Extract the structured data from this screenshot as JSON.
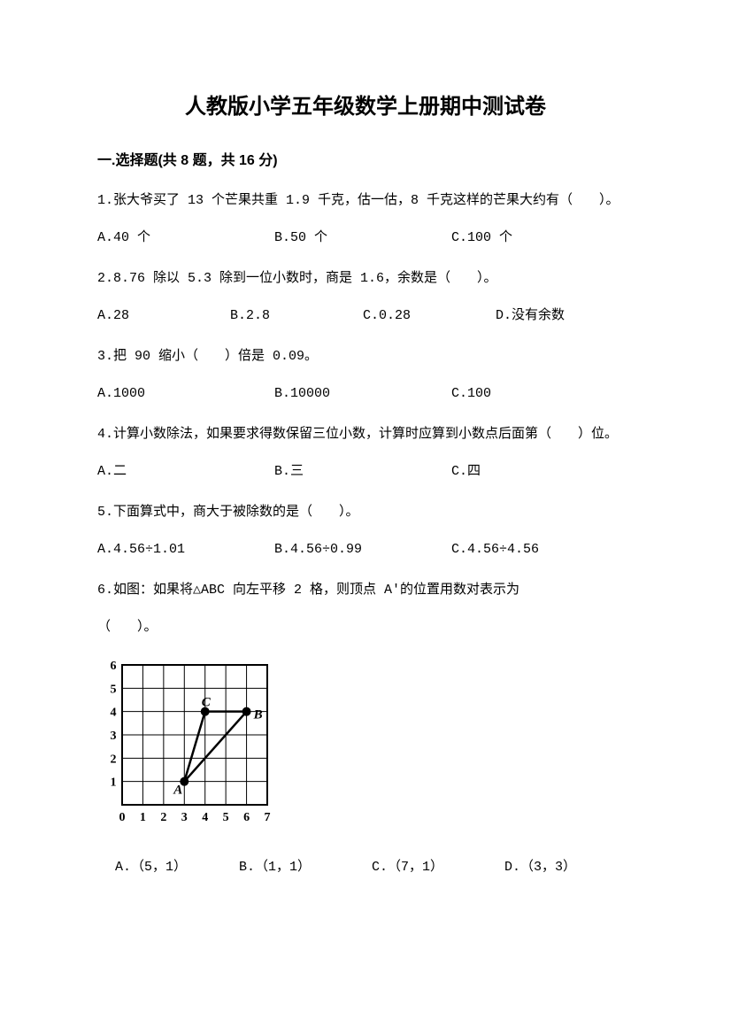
{
  "title": "人教版小学五年级数学上册期中测试卷",
  "section1": {
    "header": "一.选择题(共 8 题，共 16 分)",
    "q1": {
      "text": "1.张大爷买了 13 个芒果共重 1.9 千克，估一估，8 千克这样的芒果大约有（　　）。",
      "a": "A.40 个",
      "b": "B.50 个",
      "c": "C.100 个"
    },
    "q2": {
      "text": "2.8.76 除以 5.3 除到一位小数时，商是 1.6，余数是（　　）。",
      "a": "A.28",
      "b": "B.2.8",
      "c": "C.0.28",
      "d": "D.没有余数"
    },
    "q3": {
      "text": "3.把 90 缩小（　　）倍是 0.09。",
      "a": "A.1000",
      "b": "B.10000",
      "c": "C.100"
    },
    "q4": {
      "text": "4.计算小数除法，如果要求得数保留三位小数，计算时应算到小数点后面第（　　）位。",
      "a": "A.二",
      "b": "B.三",
      "c": "C.四"
    },
    "q5": {
      "text": "5.下面算式中，商大于被除数的是（　　）。",
      "a": "A.4.56÷1.01",
      "b": "B.4.56÷0.99",
      "c": "C.4.56÷4.56"
    },
    "q6": {
      "text1": "6.如图：如果将△ABC 向左平移 2 格，则顶点 A′的位置用数对表示为",
      "text2": "（　　）。",
      "a": "A.（5，1）",
      "b": "B.（1，1）",
      "c": "C.（7，1）",
      "d": "D.（3，3）"
    }
  },
  "chart": {
    "type": "grid-diagram",
    "x_range": [
      0,
      7
    ],
    "y_range": [
      0,
      6
    ],
    "x_labels": [
      "0",
      "1",
      "2",
      "3",
      "4",
      "5",
      "6",
      "7"
    ],
    "y_labels": [
      "1",
      "2",
      "3",
      "4",
      "5",
      "6"
    ],
    "grid_color": "#000000",
    "background_color": "#ffffff",
    "line_width": 1,
    "border_width": 2,
    "axis_font_size": 14,
    "axis_font_weight": "bold",
    "points": {
      "A": {
        "x": 3,
        "y": 1,
        "marker": "circle",
        "marker_size": 5,
        "color": "#000000"
      },
      "B": {
        "x": 6,
        "y": 4,
        "marker": "circle",
        "marker_size": 5,
        "color": "#000000"
      },
      "C": {
        "x": 4,
        "y": 4,
        "marker": "circle",
        "marker_size": 5,
        "color": "#000000"
      }
    },
    "triangle_edges": [
      [
        "A",
        "B"
      ],
      [
        "B",
        "C"
      ],
      [
        "C",
        "A"
      ]
    ],
    "edge_width": 2.5,
    "edge_color": "#000000",
    "label_font_size": 15,
    "label_font_weight": "bold"
  }
}
